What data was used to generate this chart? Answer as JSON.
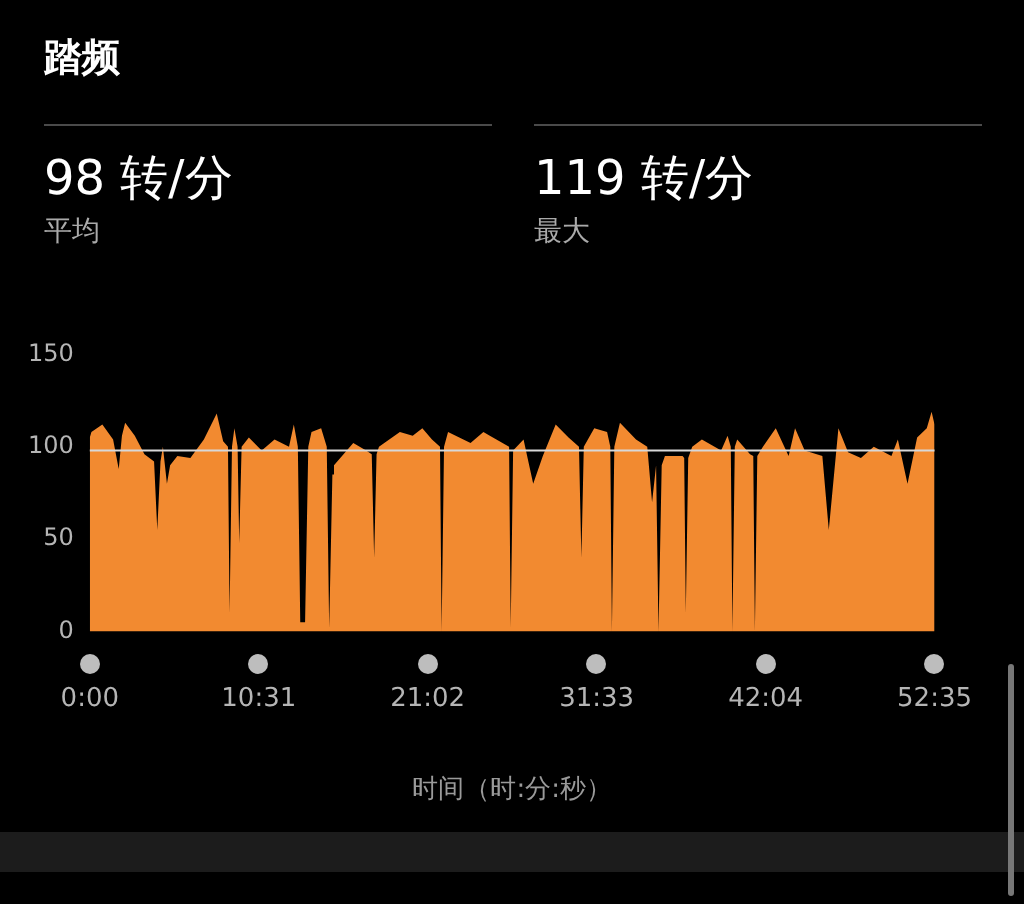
{
  "chart_data": {
    "type": "area",
    "title": "踏频",
    "xlabel": "时间（时:分:秒）",
    "annotations": [
      "98 转/分",
      "平均",
      "119 转/分",
      "最大"
    ],
    "x": [
      0,
      0.1,
      0.78,
      1.45,
      1.8,
      2.0,
      2.2,
      2.8,
      3.4,
      4.0,
      4.2,
      4.4,
      4.55,
      4.8,
      5.0,
      5.45,
      6.26,
      7.1,
      7.9,
      8.3,
      8.6,
      8.7,
      8.85,
      9.0,
      9.2,
      9.3,
      9.45,
      9.9,
      10.7,
      11.5,
      12.4,
      12.7,
      12.95,
      13.1,
      13.4,
      13.6,
      13.8,
      14.4,
      14.75,
      14.9,
      15.1,
      15.2,
      16.4,
      17.2,
      17.55,
      17.7,
      17.85,
      18.0,
      19.3,
      20.1,
      20.7,
      21.3,
      21.8,
      21.9,
      22.05,
      22.3,
      23.7,
      24.5,
      24.9,
      26.1,
      26.2,
      26.35,
      27.0,
      27.6,
      28.2,
      29.0,
      29.8,
      30.45,
      30.6,
      30.75,
      31.4,
      32.2,
      32.4,
      32.5,
      32.65,
      33.0,
      34.0,
      34.7,
      35.0,
      35.25,
      35.4,
      35.6,
      35.8,
      36.9,
      37.0,
      37.1,
      37.25,
      37.5,
      38.1,
      39.3,
      39.7,
      39.9,
      40.0,
      40.15,
      40.3,
      41.1,
      41.3,
      41.4,
      41.55,
      41.9,
      42.7,
      43.5,
      43.9,
      44.5,
      45.6,
      46.0,
      46.6,
      47.2,
      48.0,
      48.8,
      49.9,
      50.3,
      50.9,
      51.5,
      52.1,
      52.4,
      52.583
    ],
    "values": [
      105,
      108,
      112,
      104,
      88,
      106,
      113,
      106,
      96,
      92,
      55,
      92,
      100,
      80,
      90,
      95,
      94,
      104,
      118,
      103,
      100,
      10,
      100,
      110,
      100,
      48,
      100,
      105,
      98,
      104,
      100,
      112,
      100,
      5,
      5,
      100,
      108,
      110,
      100,
      2,
      85,
      90,
      102,
      98,
      96,
      40,
      96,
      100,
      108,
      106,
      110,
      104,
      100,
      0,
      100,
      108,
      102,
      108,
      106,
      100,
      2,
      98,
      104,
      80,
      95,
      112,
      105,
      100,
      40,
      100,
      110,
      108,
      100,
      0,
      100,
      113,
      104,
      100,
      70,
      90,
      0,
      90,
      95,
      95,
      94,
      10,
      94,
      100,
      104,
      98,
      106,
      100,
      0,
      100,
      104,
      96,
      95,
      0,
      95,
      100,
      110,
      95,
      110,
      98,
      95,
      55,
      110,
      97,
      94,
      100,
      95,
      104,
      80,
      105,
      110,
      119,
      112
    ],
    "color": "#f28a30",
    "xlim": [
      0,
      52.583
    ],
    "xticks": [
      {
        "value": 0,
        "label": "0:00"
      },
      {
        "value": 10.517,
        "label": "10:31"
      },
      {
        "value": 21.033,
        "label": "21:02"
      },
      {
        "value": 31.55,
        "label": "31:33"
      },
      {
        "value": 42.067,
        "label": "42:04"
      },
      {
        "value": 52.583,
        "label": "52:35"
      }
    ],
    "ylim": [
      0,
      150
    ],
    "yticks": [
      0,
      50,
      100,
      150
    ],
    "ref_lines": [
      {
        "axis": "y",
        "value": 98,
        "color": "#d8d8d8"
      }
    ],
    "legend": false
  }
}
